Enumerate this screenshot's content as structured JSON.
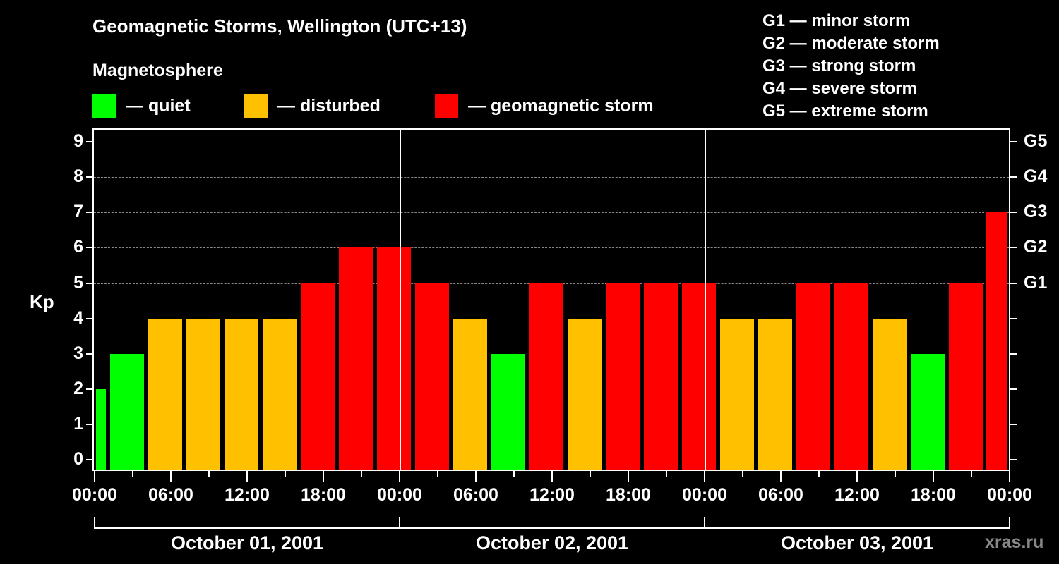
{
  "header": {
    "title": "Geomagnetic Storms, Wellington (UTC+13)",
    "subtitle": "Magnetosphere"
  },
  "legend": [
    {
      "label": "— quiet",
      "color": "#00ff00"
    },
    {
      "label": "— disturbed",
      "color": "#ffc000"
    },
    {
      "label": "— geomagnetic storm",
      "color": "#ff0000"
    }
  ],
  "g_legend": [
    "G1 — minor storm",
    "G2 — moderate storm",
    "G3 — strong storm",
    "G4 — severe storm",
    "G5 — extreme storm"
  ],
  "axes": {
    "ylabel": "Kp",
    "y_ticks": [
      "0",
      "1",
      "2",
      "3",
      "4",
      "5",
      "6",
      "7",
      "8",
      "9"
    ],
    "g_ticks": [
      "G1",
      "G2",
      "G3",
      "G4",
      "G5"
    ],
    "x_ticks": [
      "00:00",
      "06:00",
      "12:00",
      "18:00",
      "00:00",
      "06:00",
      "12:00",
      "18:00",
      "00:00",
      "06:00",
      "12:00",
      "18:00",
      "00:00"
    ],
    "dates": [
      "October 01, 2001",
      "October 02, 2001",
      "October 03, 2001"
    ]
  },
  "watermark": "xras.ru",
  "colors": {
    "quiet": "#00ff00",
    "disturbed": "#ffc000",
    "storm": "#ff0000"
  },
  "chart_data": {
    "type": "bar",
    "title": "Geomagnetic Storms, Wellington (UTC+13)",
    "subtitle": "Magnetosphere",
    "xlabel": "",
    "ylabel": "Kp",
    "ylim": [
      0,
      9
    ],
    "y2_labels": {
      "5": "G1",
      "6": "G2",
      "7": "G3",
      "8": "G4",
      "9": "G5"
    },
    "grid": true,
    "legend": [
      "quiet",
      "disturbed",
      "geomagnetic storm"
    ],
    "x_tick_labels": [
      "00:00",
      "06:00",
      "12:00",
      "18:00",
      "00:00",
      "06:00",
      "12:00",
      "18:00",
      "00:00",
      "06:00",
      "12:00",
      "18:00",
      "00:00"
    ],
    "date_groups": [
      "October 01, 2001",
      "October 02, 2001",
      "October 03, 2001"
    ],
    "values": [
      2,
      3,
      4,
      4,
      4,
      4,
      5,
      6,
      6,
      5,
      4,
      3,
      5,
      4,
      5,
      5,
      5,
      4,
      4,
      5,
      5,
      4,
      3,
      5,
      7
    ],
    "categories_status": [
      "quiet",
      "quiet",
      "disturbed",
      "disturbed",
      "disturbed",
      "disturbed",
      "storm",
      "storm",
      "storm",
      "storm",
      "disturbed",
      "quiet",
      "storm",
      "disturbed",
      "storm",
      "storm",
      "storm",
      "disturbed",
      "disturbed",
      "storm",
      "storm",
      "disturbed",
      "quiet",
      "storm",
      "storm"
    ]
  }
}
